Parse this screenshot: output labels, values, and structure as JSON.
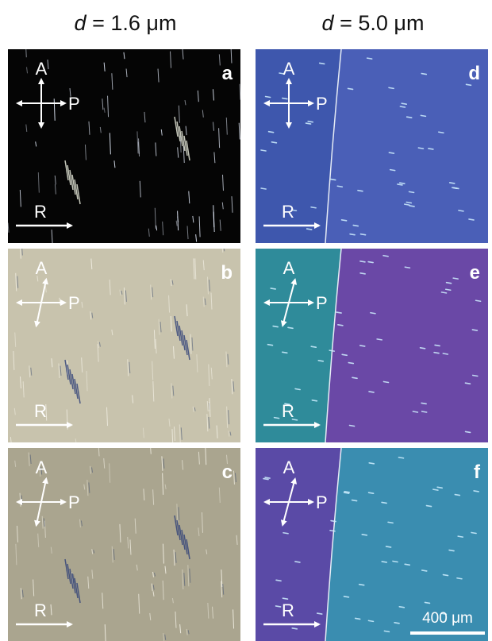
{
  "column_titles": [
    {
      "symbol": "d",
      "text": "= 1.6 μm"
    },
    {
      "symbol": "d",
      "text": "= 5.0 μm"
    }
  ],
  "panels": [
    {
      "label": "a",
      "analyzer": "A",
      "polarizer": "P",
      "rubbing": "R"
    },
    {
      "label": "b",
      "analyzer": "A",
      "polarizer": "P",
      "rubbing": "R"
    },
    {
      "label": "c",
      "analyzer": "A",
      "polarizer": "P",
      "rubbing": "R"
    },
    {
      "label": "d",
      "analyzer": "A",
      "polarizer": "P",
      "rubbing": "R"
    },
    {
      "label": "e",
      "analyzer": "A",
      "polarizer": "P",
      "rubbing": "R"
    },
    {
      "label": "f",
      "analyzer": "A",
      "polarizer": "P",
      "rubbing": "R"
    }
  ],
  "scale_bar": "400 μm"
}
